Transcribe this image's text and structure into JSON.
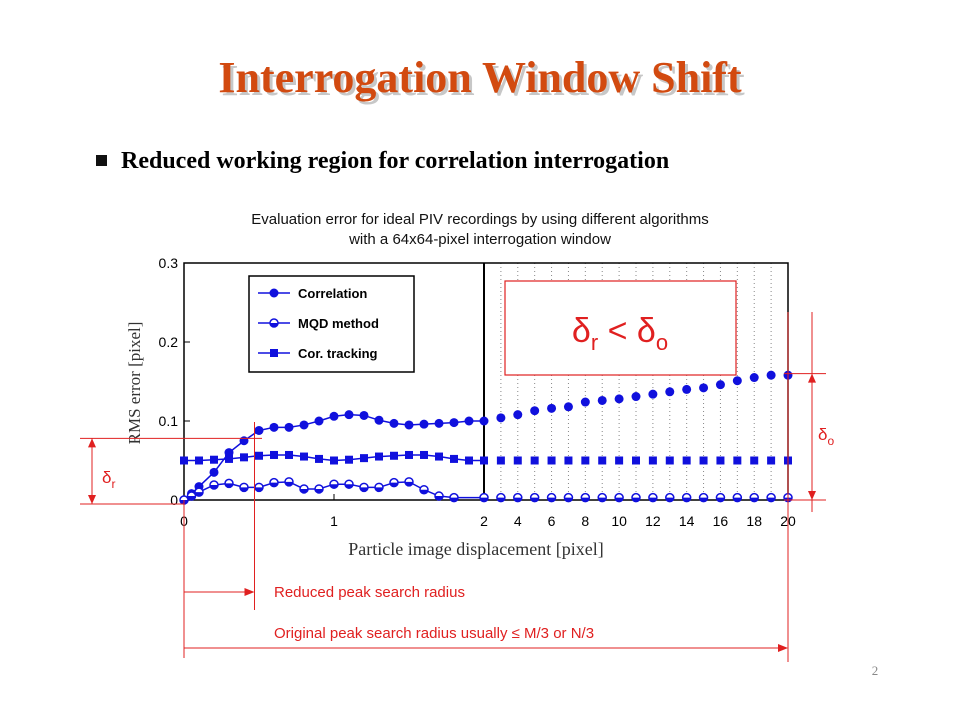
{
  "slide": {
    "title": "Interrogation Window Shift",
    "bullet": "Reduced working region for correlation interrogation",
    "page_number": "2"
  },
  "chart_data": {
    "type": "line",
    "title_lines": [
      "Evaluation error for ideal PIV recordings by using different algorithms",
      "with a 64x64-pixel interrogation window"
    ],
    "xlabel": "Particle image displacement [pixel]",
    "ylabel": "RMS error [pixel]",
    "x_scale": "piecewise: linear 0–2 (tick every 1), then linear 2–20 (tick every 2)",
    "x_tick_labels": [
      "0",
      "1",
      "2",
      "4",
      "6",
      "8",
      "10",
      "12",
      "14",
      "16",
      "18",
      "20"
    ],
    "ylim": [
      0,
      0.3
    ],
    "y_tick_labels": [
      "0",
      "0.1",
      "0.2",
      "0.3"
    ],
    "grid": "dotted vertical lines in the 2–20 region",
    "legend_position": "top-left",
    "series": [
      {
        "name": "Correlation",
        "marker": "filled-circle",
        "color": "#1010dd",
        "x": [
          0,
          0.05,
          0.1,
          0.2,
          0.3,
          0.4,
          0.5,
          0.6,
          0.7,
          0.8,
          0.9,
          1.0,
          1.1,
          1.2,
          1.3,
          1.4,
          1.5,
          1.6,
          1.7,
          1.8,
          1.9,
          2,
          3,
          4,
          5,
          6,
          7,
          8,
          9,
          10,
          11,
          12,
          13,
          14,
          15,
          16,
          17,
          18,
          19,
          20
        ],
        "y": [
          0.0,
          0.008,
          0.017,
          0.035,
          0.06,
          0.075,
          0.088,
          0.092,
          0.092,
          0.095,
          0.1,
          0.106,
          0.108,
          0.107,
          0.101,
          0.097,
          0.095,
          0.096,
          0.097,
          0.098,
          0.1,
          0.1,
          0.104,
          0.108,
          0.113,
          0.116,
          0.118,
          0.124,
          0.126,
          0.128,
          0.131,
          0.134,
          0.137,
          0.14,
          0.142,
          0.146,
          0.151,
          0.155,
          0.158,
          0.158
        ]
      },
      {
        "name": "MQD method",
        "marker": "half-filled-circle",
        "color": "#1010dd",
        "x": [
          0,
          0.05,
          0.1,
          0.2,
          0.3,
          0.4,
          0.5,
          0.6,
          0.7,
          0.8,
          0.9,
          1.0,
          1.1,
          1.2,
          1.3,
          1.4,
          1.5,
          1.6,
          1.7,
          1.8,
          2,
          3,
          4,
          5,
          6,
          7,
          8,
          9,
          10,
          11,
          12,
          13,
          14,
          15,
          16,
          17,
          18,
          19,
          20
        ],
        "y": [
          0.0,
          0.005,
          0.01,
          0.019,
          0.021,
          0.016,
          0.016,
          0.022,
          0.023,
          0.014,
          0.014,
          0.02,
          0.02,
          0.016,
          0.016,
          0.022,
          0.023,
          0.013,
          0.005,
          0.003,
          0.003,
          0.003,
          0.003,
          0.003,
          0.003,
          0.003,
          0.003,
          0.003,
          0.003,
          0.003,
          0.003,
          0.003,
          0.003,
          0.003,
          0.003,
          0.003,
          0.003,
          0.003,
          0.003
        ]
      },
      {
        "name": "Cor. tracking",
        "marker": "filled-square",
        "color": "#1010dd",
        "x": [
          0,
          0.1,
          0.2,
          0.3,
          0.4,
          0.5,
          0.6,
          0.7,
          0.8,
          0.9,
          1.0,
          1.1,
          1.2,
          1.3,
          1.4,
          1.5,
          1.6,
          1.7,
          1.8,
          1.9,
          2,
          3,
          4,
          5,
          6,
          7,
          8,
          9,
          10,
          11,
          12,
          13,
          14,
          15,
          16,
          17,
          18,
          19,
          20
        ],
        "y": [
          0.05,
          0.05,
          0.051,
          0.052,
          0.054,
          0.056,
          0.057,
          0.057,
          0.055,
          0.052,
          0.05,
          0.051,
          0.053,
          0.055,
          0.056,
          0.057,
          0.057,
          0.055,
          0.052,
          0.05,
          0.05,
          0.05,
          0.05,
          0.05,
          0.05,
          0.05,
          0.05,
          0.05,
          0.05,
          0.05,
          0.05,
          0.05,
          0.05,
          0.05,
          0.05,
          0.05,
          0.05,
          0.05,
          0.05
        ]
      }
    ],
    "annotations": {
      "inequality": {
        "delta": "δ",
        "r": "r",
        "lt": "<",
        "o": "o"
      },
      "delta_r_label": {
        "delta": "δ",
        "sub": "r"
      },
      "delta_o_label": {
        "delta": "δ",
        "sub": "o"
      },
      "reduced_radius": "Reduced peak search radius",
      "original_radius": "Original peak search radius usually ≤ M/3 or N/3",
      "reduced_radius_x": 0.47,
      "original_radius_x": 20,
      "delta_r_y": 0.078,
      "delta_o_y": 0.16
    },
    "colors": {
      "series": "#1010dd",
      "annotation": "#e02020",
      "title": "#d24a10",
      "frame": "#000000"
    }
  }
}
